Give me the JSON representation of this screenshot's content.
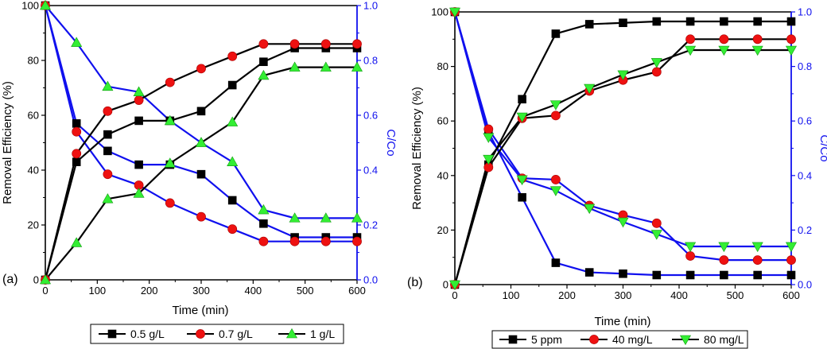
{
  "chart_data": [
    {
      "type": "line",
      "panel_label": "(a)",
      "xlabel": "Time (min)",
      "ylabel": "Removal Efficiency (%)",
      "y2label": "C/Co",
      "xlim": [
        0,
        600
      ],
      "ylim": [
        0,
        100
      ],
      "y2lim": [
        0,
        1.0
      ],
      "xticks": [
        "0",
        "100",
        "200",
        "300",
        "400",
        "500",
        "600"
      ],
      "yticks": [
        "0",
        "20",
        "40",
        "60",
        "80",
        "100"
      ],
      "y2ticks": [
        "0.0",
        "0.2",
        "0.4",
        "0.6",
        "0.8",
        "1.0"
      ],
      "x": [
        0,
        60,
        120,
        180,
        240,
        300,
        360,
        420,
        480,
        540,
        600
      ],
      "series": [
        {
          "name": "0.5 g/L",
          "marker": "square",
          "fill": "#000000",
          "removal": [
            0,
            43,
            53,
            58,
            58,
            61.5,
            71,
            79.5,
            84.5,
            84.5,
            84.5
          ],
          "c_co": [
            1.0,
            0.57,
            0.47,
            0.42,
            0.42,
            0.385,
            0.29,
            0.205,
            0.155,
            0.155,
            0.155
          ]
        },
        {
          "name": "0.7 g/L",
          "marker": "circle",
          "fill": "#ee1111",
          "removal": [
            0,
            46,
            61.5,
            65.5,
            72,
            77,
            81.5,
            86,
            86,
            86,
            86
          ],
          "c_co": [
            1.0,
            0.54,
            0.385,
            0.345,
            0.28,
            0.23,
            0.185,
            0.14,
            0.14,
            0.14,
            0.14
          ]
        },
        {
          "name": "1 g/L",
          "marker": "triangle-up",
          "fill": "#33ee33",
          "removal": [
            0,
            13.5,
            29.5,
            31.5,
            42.5,
            50,
            57.5,
            74.5,
            77.5,
            77.5,
            77.5
          ],
          "c_co": [
            1.0,
            0.865,
            0.705,
            0.685,
            0.58,
            0.5,
            0.43,
            0.255,
            0.225,
            0.225,
            0.225
          ]
        }
      ]
    },
    {
      "type": "line",
      "panel_label": "(b)",
      "xlabel": "Time (min)",
      "ylabel": "Removal Efficiency (%)",
      "y2label": "C/Co",
      "xlim": [
        0,
        600
      ],
      "ylim": [
        0,
        100
      ],
      "y2lim": [
        0,
        1.0
      ],
      "xticks": [
        "0",
        "100",
        "200",
        "300",
        "400",
        "500",
        "600"
      ],
      "yticks": [
        "0",
        "20",
        "40",
        "60",
        "80",
        "100"
      ],
      "y2ticks": [
        "0.0",
        "0.2",
        "0.4",
        "0.6",
        "0.8",
        "1.0"
      ],
      "x": [
        0,
        60,
        120,
        180,
        240,
        300,
        360,
        420,
        480,
        540,
        600
      ],
      "series": [
        {
          "name": "5 ppm",
          "marker": "square",
          "fill": "#000000",
          "removal": [
            0,
            44,
            68,
            92,
            95.5,
            96,
            96.5,
            96.5,
            96.5,
            96.5,
            96.5
          ],
          "c_co": [
            1.0,
            0.56,
            0.32,
            0.08,
            0.045,
            0.04,
            0.035,
            0.035,
            0.035,
            0.035,
            0.035
          ]
        },
        {
          "name": "40 mg/L",
          "marker": "circle",
          "fill": "#ee1111",
          "removal": [
            0,
            43,
            61,
            62,
            71,
            75,
            78,
            90,
            90,
            90,
            90
          ],
          "c_co": [
            1.0,
            0.57,
            0.39,
            0.385,
            0.29,
            0.255,
            0.225,
            0.105,
            0.09,
            0.09,
            0.09
          ]
        },
        {
          "name": "80 mg/L",
          "marker": "triangle-down",
          "fill": "#33ee33",
          "removal": [
            0,
            46,
            61.5,
            66,
            72,
            77,
            81.5,
            86,
            86,
            86,
            86
          ],
          "c_co": [
            1.0,
            0.54,
            0.385,
            0.345,
            0.28,
            0.23,
            0.185,
            0.14,
            0.14,
            0.14,
            0.14
          ]
        }
      ]
    }
  ]
}
